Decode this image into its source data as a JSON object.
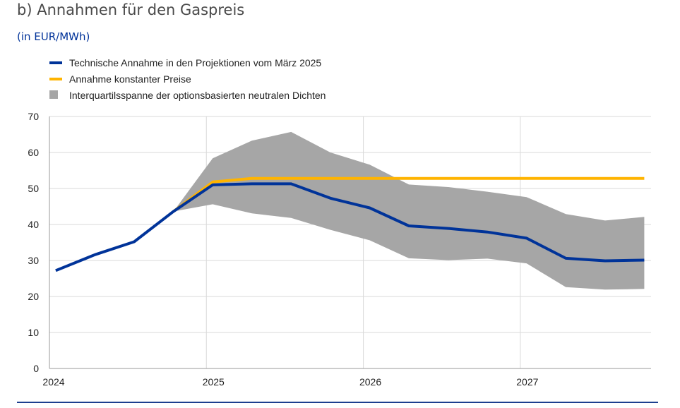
{
  "header": {
    "title": "b) Annahmen für den Gaspreis",
    "subtitle": "(in EUR/MWh)"
  },
  "chart_data": {
    "type": "line",
    "title": "b) Annahmen für den Gaspreis",
    "ylabel": "(in EUR/MWh)",
    "xlabel": "",
    "xlim": [
      2024,
      2027.833
    ],
    "ylim": [
      0,
      70
    ],
    "yticks": [
      0,
      10,
      20,
      30,
      40,
      50,
      60,
      70
    ],
    "xtick_labels": [
      "2024",
      "2025",
      "2026",
      "2027"
    ],
    "xticks": [
      2024,
      2025,
      2026,
      2027
    ],
    "grid": true,
    "legend_position": "top-left",
    "colors": {
      "technical": "#003399",
      "constant": "#ffb400",
      "band": "#a6a6a6",
      "grid": "#d9d9d9",
      "axis": "#999999"
    },
    "series": [
      {
        "name": "Technische Annahme in den Projektionen vom März 2025",
        "key": "technical",
        "x": [
          2024.04,
          2024.29,
          2024.54,
          2024.79,
          2025.04,
          2025.29,
          2025.54,
          2025.79,
          2026.04,
          2026.29,
          2026.54,
          2026.79,
          2027.04,
          2027.29,
          2027.54,
          2027.79
        ],
        "values": [
          27.2,
          31.6,
          35.2,
          43.6,
          51.0,
          51.3,
          51.3,
          47.3,
          44.6,
          39.6,
          38.9,
          37.9,
          36.2,
          30.6,
          29.9,
          30.1
        ]
      },
      {
        "name": "Annahme konstanter Preise",
        "key": "constant",
        "x": [
          2024.79,
          2025.04,
          2025.29,
          2025.54,
          2025.79,
          2026.04,
          2026.29,
          2026.54,
          2026.79,
          2027.04,
          2027.29,
          2027.54,
          2027.79
        ],
        "values": [
          43.6,
          51.8,
          52.8,
          52.8,
          52.8,
          52.8,
          52.8,
          52.8,
          52.8,
          52.8,
          52.8,
          52.8,
          52.8
        ]
      },
      {
        "name": "Interquartilsspanne der optionsbasierten neutralen Dichten",
        "key": "band",
        "x": [
          2024.79,
          2025.04,
          2025.29,
          2025.54,
          2025.79,
          2026.04,
          2026.29,
          2026.54,
          2026.79,
          2027.04,
          2027.29,
          2027.54,
          2027.79
        ],
        "upper": [
          43.6,
          58.4,
          63.3,
          65.7,
          60.0,
          56.6,
          51.1,
          50.4,
          49.1,
          47.6,
          42.9,
          41.1,
          42.1
        ],
        "lower": [
          43.6,
          45.6,
          43.1,
          41.8,
          38.5,
          35.6,
          30.6,
          30.1,
          30.5,
          29.2,
          22.6,
          21.9,
          22.1
        ]
      }
    ]
  }
}
